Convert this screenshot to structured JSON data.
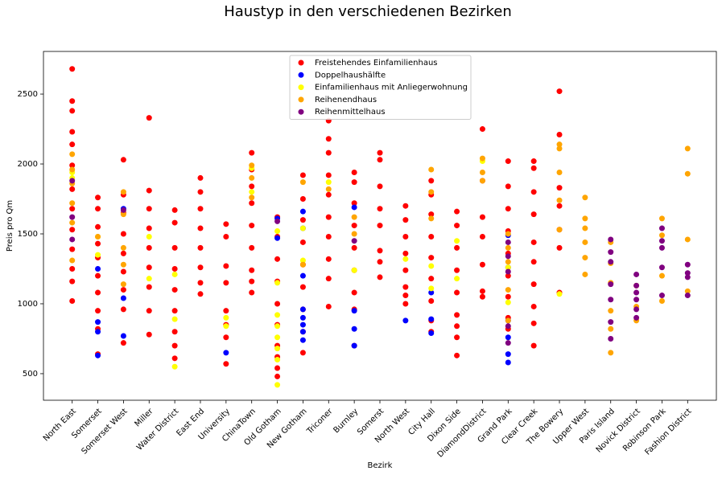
{
  "chart_data": {
    "type": "scatter",
    "title": "Haustyp in den verschiedenen Bezirken",
    "xlabel": "Bezirk",
    "ylabel": "Preis pro Qm",
    "categories": [
      "North East",
      "Somerset",
      "Somerset West",
      "Miller",
      "Water District",
      "East End",
      "University",
      "ChinaTown",
      "Old Gotham",
      "New Gotham",
      "Triconer",
      "Burnley",
      "Somerst",
      "North West",
      "City Hall",
      "Dixon Side",
      "DiamondDistrict",
      "Grand Park",
      "Clear Creek",
      "The Bowery",
      "Upper West",
      "Paris Island",
      "Novick District",
      "Robinson Park",
      "Fashion District"
    ],
    "ylim": [
      310,
      2805
    ],
    "yticks": [
      500,
      1000,
      1500,
      2000,
      2500
    ],
    "legend": "upper center",
    "series": [
      {
        "name": "Freistehendes Einfamilienhaus",
        "color": "#ff0000",
        "x": [
          "North East",
          "North East",
          "North East",
          "North East",
          "North East",
          "North East",
          "North East",
          "North East",
          "North East",
          "North East",
          "North East",
          "North East",
          "North East",
          "Somerset",
          "Somerset",
          "Somerset",
          "Somerset",
          "Somerset",
          "Somerset",
          "Somerset",
          "Somerset",
          "Somerset",
          "Somerset",
          "Somerset West",
          "Somerset West",
          "Somerset West",
          "Somerset West",
          "Somerset West",
          "Somerset West",
          "Somerset West",
          "Somerset West",
          "Somerset West",
          "Miller",
          "Miller",
          "Miller",
          "Miller",
          "Miller",
          "Miller",
          "Miller",
          "Miller",
          "Miller",
          "Water District",
          "Water District",
          "Water District",
          "Water District",
          "Water District",
          "Water District",
          "Water District",
          "Water District",
          "Water District",
          "East End",
          "East End",
          "East End",
          "East End",
          "East End",
          "East End",
          "East End",
          "East End",
          "University",
          "University",
          "University",
          "University",
          "University",
          "University",
          "University",
          "University",
          "ChinaTown",
          "ChinaTown",
          "ChinaTown",
          "ChinaTown",
          "ChinaTown",
          "ChinaTown",
          "ChinaTown",
          "ChinaTown",
          "ChinaTown",
          "Old Gotham",
          "Old Gotham",
          "Old Gotham",
          "Old Gotham",
          "Old Gotham",
          "Old Gotham",
          "Old Gotham",
          "Old Gotham",
          "Old Gotham",
          "Old Gotham",
          "New Gotham",
          "New Gotham",
          "New Gotham",
          "New Gotham",
          "New Gotham",
          "New Gotham",
          "New Gotham",
          "New Gotham",
          "New Gotham",
          "Triconer",
          "Triconer",
          "Triconer",
          "Triconer",
          "Triconer",
          "Triconer",
          "Triconer",
          "Triconer",
          "Triconer",
          "Triconer",
          "Burnley",
          "Burnley",
          "Burnley",
          "Burnley",
          "Burnley",
          "Burnley",
          "Burnley",
          "Burnley",
          "Burnley",
          "Somerst",
          "Somerst",
          "Somerst",
          "Somerst",
          "Somerst",
          "Somerst",
          "Somerst",
          "Somerst",
          "North West",
          "North West",
          "North West",
          "North West",
          "North West",
          "North West",
          "North West",
          "North West",
          "City Hall",
          "City Hall",
          "City Hall",
          "City Hall",
          "City Hall",
          "City Hall",
          "City Hall",
          "City Hall",
          "City Hall",
          "Dixon Side",
          "Dixon Side",
          "Dixon Side",
          "Dixon Side",
          "Dixon Side",
          "Dixon Side",
          "Dixon Side",
          "Dixon Side",
          "Dixon Side",
          "DiamondDistrict",
          "DiamondDistrict",
          "DiamondDistrict",
          "DiamondDistrict",
          "DiamondDistrict",
          "DiamondDistrict",
          "DiamondDistrict",
          "Grand Park",
          "Grand Park",
          "Grand Park",
          "Grand Park",
          "Grand Park",
          "Grand Park",
          "Grand Park",
          "Grand Park",
          "Grand Park",
          "Clear Creek",
          "Clear Creek",
          "Clear Creek",
          "Clear Creek",
          "Clear Creek",
          "Clear Creek",
          "Clear Creek",
          "Clear Creek",
          "Clear Creek",
          "Clear Creek",
          "The Bowery",
          "The Bowery",
          "The Bowery",
          "The Bowery",
          "The Bowery",
          "The Bowery",
          "The Bowery"
        ],
        "values": [
          2680,
          2450,
          2380,
          2230,
          2140,
          1990,
          1820,
          1680,
          1530,
          1390,
          1250,
          1160,
          1020,
          1760,
          1680,
          1550,
          1430,
          1330,
          1200,
          1080,
          950,
          820,
          640,
          2030,
          1780,
          1650,
          1500,
          1360,
          1230,
          1100,
          960,
          720,
          2330,
          1810,
          1680,
          1540,
          1400,
          1260,
          1120,
          950,
          780,
          1670,
          1580,
          1400,
          1250,
          1100,
          950,
          800,
          700,
          610,
          1900,
          1800,
          1680,
          1540,
          1400,
          1260,
          1150,
          1070,
          1570,
          1480,
          1270,
          1150,
          950,
          850,
          760,
          570,
          2080,
          1960,
          1840,
          1720,
          1560,
          1400,
          1240,
          1160,
          1080,
          1620,
          1480,
          1320,
          1160,
          1000,
          850,
          700,
          620,
          540,
          480,
          1920,
          1750,
          1600,
          1440,
          1280,
          1120,
          960,
          800,
          650,
          2310,
          2180,
          2080,
          1920,
          1780,
          1620,
          1480,
          1320,
          1180,
          980,
          1940,
          1870,
          1720,
          1560,
          1400,
          1240,
          1080,
          960,
          700,
          2080,
          2030,
          1840,
          1680,
          1560,
          1380,
          1300,
          1190,
          1700,
          1600,
          1480,
          1360,
          1240,
          1120,
          1060,
          1000,
          1880,
          1780,
          1640,
          1480,
          1330,
          1180,
          1020,
          880,
          800,
          1660,
          1560,
          1400,
          1240,
          1080,
          920,
          840,
          760,
          630,
          2250,
          1880,
          1620,
          1480,
          1280,
          1090,
          1050,
          2020,
          1840,
          1680,
          1520,
          1360,
          1200,
          1050,
          900,
          820,
          2020,
          1970,
          1800,
          1640,
          1440,
          1300,
          1140,
          980,
          860,
          700,
          2520,
          2210,
          1830,
          1700,
          1530,
          1400,
          1080
        ]
      },
      {
        "name": "Doppelhaushälfte",
        "color": "#0000ff",
        "x": [
          "Somerset",
          "Somerset",
          "Somerset",
          "Somerset",
          "Somerset West",
          "Somerset West",
          "Somerset West",
          "University",
          "Old Gotham",
          "Old Gotham",
          "New Gotham",
          "New Gotham",
          "New Gotham",
          "New Gotham",
          "New Gotham",
          "New Gotham",
          "New Gotham",
          "New Gotham",
          "Burnley",
          "Burnley",
          "Burnley",
          "Burnley",
          "North West",
          "City Hall",
          "City Hall",
          "City Hall",
          "Grand Park",
          "Grand Park",
          "Grand Park",
          "Grand Park",
          "Grand Park",
          "Grand Park"
        ],
        "values": [
          1250,
          870,
          800,
          630,
          1680,
          1040,
          770,
          650,
          1610,
          1470,
          1660,
          1540,
          1200,
          960,
          900,
          850,
          800,
          740,
          1690,
          950,
          820,
          700,
          880,
          1080,
          890,
          790,
          1490,
          1260,
          880,
          760,
          640,
          580
        ]
      },
      {
        "name": "Einfamilienhaus mit Anliegerwohnung",
        "color": "#ffff00",
        "x": [
          "North East",
          "North East",
          "Somerset",
          "Somerset",
          "Miller",
          "Miller",
          "Water District",
          "Water District",
          "Water District",
          "University",
          "University",
          "ChinaTown",
          "ChinaTown",
          "Old Gotham",
          "Old Gotham",
          "Old Gotham",
          "Old Gotham",
          "Old Gotham",
          "Old Gotham",
          "Old Gotham",
          "Old Gotham",
          "New Gotham",
          "New Gotham",
          "Triconer",
          "Burnley",
          "North West",
          "City Hall",
          "City Hall",
          "Dixon Side",
          "Dixon Side",
          "DiamondDistrict",
          "Grand Park",
          "Grand Park",
          "The Bowery"
        ],
        "values": [
          1940,
          1900,
          1480,
          1350,
          1480,
          1180,
          1210,
          890,
          550,
          900,
          840,
          1970,
          1800,
          1520,
          1150,
          920,
          840,
          760,
          680,
          600,
          420,
          1540,
          1310,
          1870,
          1240,
          1320,
          1270,
          1110,
          1450,
          1180,
          2020,
          1260,
          1010,
          1070
        ]
      },
      {
        "name": "Reihenendhaus",
        "color": "#ffa500",
        "x": [
          "North East",
          "North East",
          "North East",
          "North East",
          "North East",
          "North East",
          "Somerset",
          "Somerset West",
          "Somerset West",
          "Somerset West",
          "Somerset West",
          "Somerset West",
          "ChinaTown",
          "ChinaTown",
          "ChinaTown",
          "New Gotham",
          "New Gotham",
          "Triconer",
          "Burnley",
          "Burnley",
          "City Hall",
          "City Hall",
          "City Hall",
          "DiamondDistrict",
          "DiamondDistrict",
          "DiamondDistrict",
          "Grand Park",
          "Grand Park",
          "Grand Park",
          "Grand Park",
          "Grand Park",
          "The Bowery",
          "The Bowery",
          "The Bowery",
          "The Bowery",
          "The Bowery",
          "Upper West",
          "Upper West",
          "Upper West",
          "Upper West",
          "Upper West",
          "Upper West",
          "Paris Island",
          "Paris Island",
          "Paris Island",
          "Paris Island",
          "Paris Island",
          "Paris Island",
          "Novick District",
          "Novick District",
          "Novick District",
          "Robinson Park",
          "Robinson Park",
          "Robinson Park",
          "Robinson Park",
          "Fashion District",
          "Fashion District",
          "Fashion District",
          "Fashion District"
        ],
        "values": [
          2070,
          1960,
          1860,
          1720,
          1580,
          1310,
          1480,
          1800,
          1640,
          1400,
          1280,
          1140,
          1990,
          1900,
          1760,
          1870,
          1280,
          1820,
          1620,
          1500,
          1960,
          1800,
          1610,
          2040,
          1940,
          1880,
          1500,
          1400,
          1300,
          1100,
          880,
          2140,
          2110,
          1940,
          1740,
          1530,
          1760,
          1610,
          1540,
          1440,
          1330,
          1210,
          1440,
          1290,
          1150,
          950,
          820,
          650,
          1130,
          980,
          880,
          1610,
          1490,
          1200,
          1020,
          2110,
          1930,
          1460,
          1090
        ]
      },
      {
        "name": "Reihenmittelhaus",
        "color": "#800080",
        "x": [
          "North East",
          "North East",
          "North East",
          "Somerset West",
          "Old Gotham",
          "Burnley",
          "Grand Park",
          "Grand Park",
          "Grand Park",
          "Grand Park",
          "Grand Park",
          "Paris Island",
          "Paris Island",
          "Paris Island",
          "Paris Island",
          "Paris Island",
          "Paris Island",
          "Paris Island",
          "Novick District",
          "Novick District",
          "Novick District",
          "Novick District",
          "Novick District",
          "Novick District",
          "Robinson Park",
          "Robinson Park",
          "Robinson Park",
          "Robinson Park",
          "Robinson Park",
          "Fashion District",
          "Fashion District",
          "Fashion District",
          "Fashion District"
        ],
        "values": [
          1880,
          1620,
          1460,
          1670,
          1590,
          1450,
          1440,
          1340,
          1230,
          840,
          720,
          1460,
          1370,
          1300,
          1140,
          1030,
          870,
          750,
          1210,
          1130,
          1080,
          1030,
          960,
          900,
          1540,
          1450,
          1400,
          1260,
          1060,
          1280,
          1220,
          1190,
          1060
        ]
      }
    ]
  }
}
